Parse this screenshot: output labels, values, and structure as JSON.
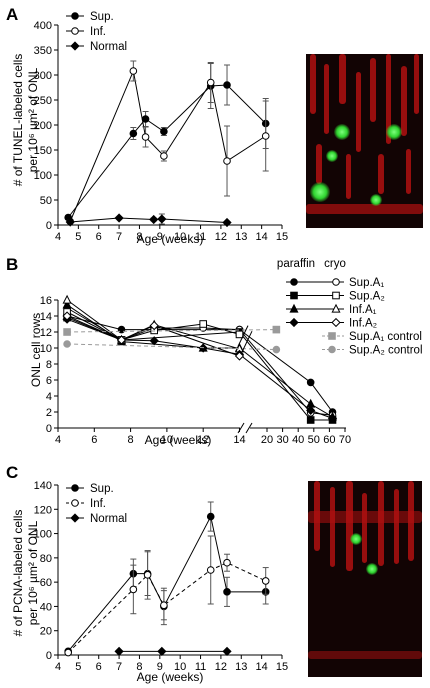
{
  "panels": [
    {
      "letter": "A",
      "xlabel": "Age (weeks)",
      "ylabel_lines": [
        "# of TUNEL-labeled cells",
        "per 10⁶ µm² of ONL"
      ],
      "legend": [
        "Sup.",
        "Inf.",
        "Normal"
      ]
    },
    {
      "letter": "B",
      "xlabel": "Age (weeks)",
      "ylabel_lines": [
        "ONL cell rows"
      ],
      "legend_header": [
        "paraffin",
        "cryo"
      ],
      "legend": [
        "Sup.A₁",
        "Sup.A₂",
        "Inf.A₁",
        "Inf.A₂",
        "Sup.A₁ control",
        "Sup.A₂ control"
      ]
    },
    {
      "letter": "C",
      "xlabel": "Age (weeks)",
      "ylabel_lines": [
        "# of PCNA-labeled cells",
        "per 10⁶ µm² of ONL"
      ],
      "legend": [
        "Sup.",
        "Inf.",
        "Normal"
      ]
    }
  ],
  "chart_data": [
    {
      "type": "line",
      "panel": "A",
      "xlim": [
        4,
        15
      ],
      "ylim": [
        0,
        400
      ],
      "xticks": [
        4,
        5,
        6,
        7,
        8,
        9,
        10,
        11,
        12,
        13,
        14,
        15
      ],
      "yticks": [
        0,
        50,
        100,
        150,
        200,
        250,
        300,
        350,
        400
      ],
      "series": [
        {
          "name": "Sup.",
          "marker": "filled-circle",
          "x": [
            4.5,
            7.7,
            8.3,
            9.2,
            11.5,
            12.3,
            14.2
          ],
          "y": [
            15,
            183,
            212,
            187,
            278,
            280,
            203
          ],
          "err": [
            4,
            12,
            15,
            8,
            45,
            40,
            50
          ]
        },
        {
          "name": "Inf.",
          "marker": "open-circle",
          "x": [
            4.6,
            7.7,
            8.3,
            9.2,
            11.5,
            12.3,
            14.2
          ],
          "y": [
            7,
            308,
            176,
            138,
            285,
            128,
            178
          ],
          "err": [
            4,
            20,
            20,
            10,
            40,
            70,
            70
          ]
        },
        {
          "name": "Normal",
          "marker": "filled-diamond",
          "x": [
            4.6,
            7.0,
            8.7,
            9.1,
            12.3
          ],
          "y": [
            6,
            14,
            11,
            12,
            5
          ],
          "err": [
            2,
            2,
            3,
            10,
            2
          ]
        }
      ]
    },
    {
      "type": "line",
      "panel": "B",
      "ylim": [
        0,
        16
      ],
      "axis_break": true,
      "xticks": [
        4,
        6,
        8,
        10,
        12,
        14,
        20,
        30,
        40,
        50,
        60,
        70
      ],
      "yticks": [
        0,
        2,
        4,
        6,
        8,
        10,
        12,
        14,
        16
      ],
      "series": [
        {
          "name": "Sup.A₁",
          "marker": "filled-circle",
          "x": [
            4.5,
            7.5,
            14,
            48,
            62
          ],
          "y": [
            14,
            12.3,
            12.3,
            5.7,
            2
          ]
        },
        {
          "name": "Sup.A₁",
          "marker": "open-circle",
          "x": [
            4.5,
            7.5,
            9.3,
            12,
            14,
            48,
            62
          ],
          "y": [
            15,
            11,
            12.5,
            12.5,
            12.3,
            1.9,
            1.6
          ]
        },
        {
          "name": "Sup.A₂",
          "marker": "filled-square",
          "x": [
            4.5,
            7.5,
            14,
            48,
            62
          ],
          "y": [
            13.8,
            11,
            12,
            1,
            1
          ]
        },
        {
          "name": "Sup.A₂",
          "marker": "open-square",
          "x": [
            4.5,
            7.5,
            9.3,
            12,
            14
          ],
          "y": [
            14.5,
            11,
            12.2,
            13,
            11.7
          ]
        },
        {
          "name": "Inf.A₁",
          "marker": "filled-triangle",
          "x": [
            4.5,
            7.5,
            12,
            14,
            48,
            62
          ],
          "y": [
            15.4,
            10.8,
            10,
            10,
            3,
            1.4
          ]
        },
        {
          "name": "Inf.A₁",
          "marker": "open-triangle",
          "x": [
            4.5,
            7.5,
            9.3,
            14
          ],
          "y": [
            16,
            11,
            12.9,
            9.9
          ]
        },
        {
          "name": "Inf.A₂",
          "marker": "filled-diamond",
          "x": [
            4.5,
            7.5,
            9.3,
            12,
            14,
            48,
            62
          ],
          "y": [
            13.6,
            11,
            10.9,
            10,
            9.2,
            2.2,
            1.2
          ]
        },
        {
          "name": "Inf.A₂",
          "marker": "open-diamond",
          "x": [
            4.5,
            7.5,
            9.3,
            14
          ],
          "y": [
            14,
            11,
            12.8,
            9
          ]
        },
        {
          "name": "Sup.A₁ control",
          "marker": "gray-square",
          "dashed": true,
          "x": [
            4.5,
            26
          ],
          "y": [
            12,
            12.3
          ]
        },
        {
          "name": "Sup.A₂ control",
          "marker": "gray-circle",
          "dashed": true,
          "x": [
            4.5,
            26
          ],
          "y": [
            10.5,
            9.8
          ]
        }
      ]
    },
    {
      "type": "line",
      "panel": "C",
      "xlim": [
        4,
        15
      ],
      "ylim": [
        0,
        140
      ],
      "xticks": [
        4,
        5,
        6,
        7,
        8,
        9,
        10,
        11,
        12,
        13,
        14,
        15
      ],
      "yticks": [
        0,
        20,
        40,
        60,
        80,
        100,
        120,
        140
      ],
      "series": [
        {
          "name": "Sup.",
          "marker": "filled-circle",
          "dashed": false,
          "x": [
            4.5,
            7.7,
            8.4,
            9.2,
            11.5,
            12.3,
            14.2
          ],
          "y": [
            3,
            67,
            67,
            40,
            114,
            52,
            52
          ],
          "err": [
            1,
            12,
            18,
            15,
            12,
            12,
            10
          ]
        },
        {
          "name": "Inf.",
          "marker": "open-circle",
          "dashed": true,
          "x": [
            4.5,
            7.7,
            8.4,
            9.2,
            11.5,
            12.3,
            14.2
          ],
          "y": [
            2,
            54,
            66,
            41,
            70,
            76,
            61
          ],
          "err": [
            1,
            20,
            20,
            12,
            28,
            7,
            11
          ]
        },
        {
          "name": "Normal",
          "marker": "filled-diamond",
          "dashed": false,
          "x": [
            7.0,
            9.1,
            12.3
          ],
          "y": [
            3,
            3,
            3
          ],
          "err": [
            0.5,
            0.5,
            0.5
          ]
        }
      ]
    }
  ]
}
